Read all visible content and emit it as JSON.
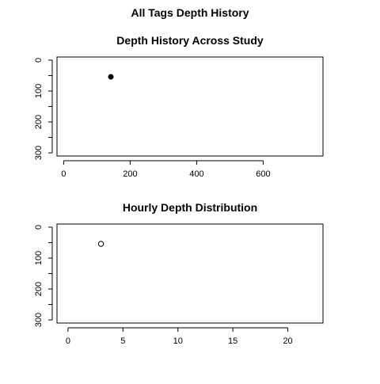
{
  "page": {
    "title": "All Tags Depth History",
    "background": "#ffffff",
    "foreground": "#000000"
  },
  "chart_data": [
    {
      "type": "scatter",
      "title": "Depth History Across Study",
      "xlabel": "",
      "ylabel": "",
      "xlim": [
        -20,
        780
      ],
      "ylim": [
        310,
        -10
      ],
      "y_reversed": true,
      "x_ticks": [
        0,
        200,
        400,
        600
      ],
      "y_ticks": [
        0,
        100,
        200,
        300
      ],
      "x_tick_labels": [
        "0",
        "200",
        "400",
        "600"
      ],
      "y_tick_labels": [
        "0",
        "100",
        "200",
        "300"
      ],
      "marker": "filled-circle",
      "series": [
        {
          "x": [
            142
          ],
          "y": [
            54
          ]
        }
      ],
      "bottom_line_at_y": 310,
      "grid": false,
      "legend": "none"
    },
    {
      "type": "scatter",
      "title": "Hourly Depth Distribution",
      "xlabel": "",
      "ylabel": "",
      "xlim": [
        -1,
        23.2
      ],
      "ylim": [
        310,
        -10
      ],
      "y_reversed": true,
      "x_ticks": [
        0,
        5,
        10,
        15,
        20
      ],
      "y_ticks": [
        0,
        100,
        200,
        300
      ],
      "x_tick_labels": [
        "0",
        "5",
        "10",
        "15",
        "20"
      ],
      "y_tick_labels": [
        "0",
        "100",
        "200",
        "300"
      ],
      "marker": "open-circle",
      "series": [
        {
          "x": [
            3
          ],
          "y": [
            54
          ]
        }
      ],
      "bottom_line_at_y": 310,
      "grid": false,
      "legend": "none"
    }
  ]
}
